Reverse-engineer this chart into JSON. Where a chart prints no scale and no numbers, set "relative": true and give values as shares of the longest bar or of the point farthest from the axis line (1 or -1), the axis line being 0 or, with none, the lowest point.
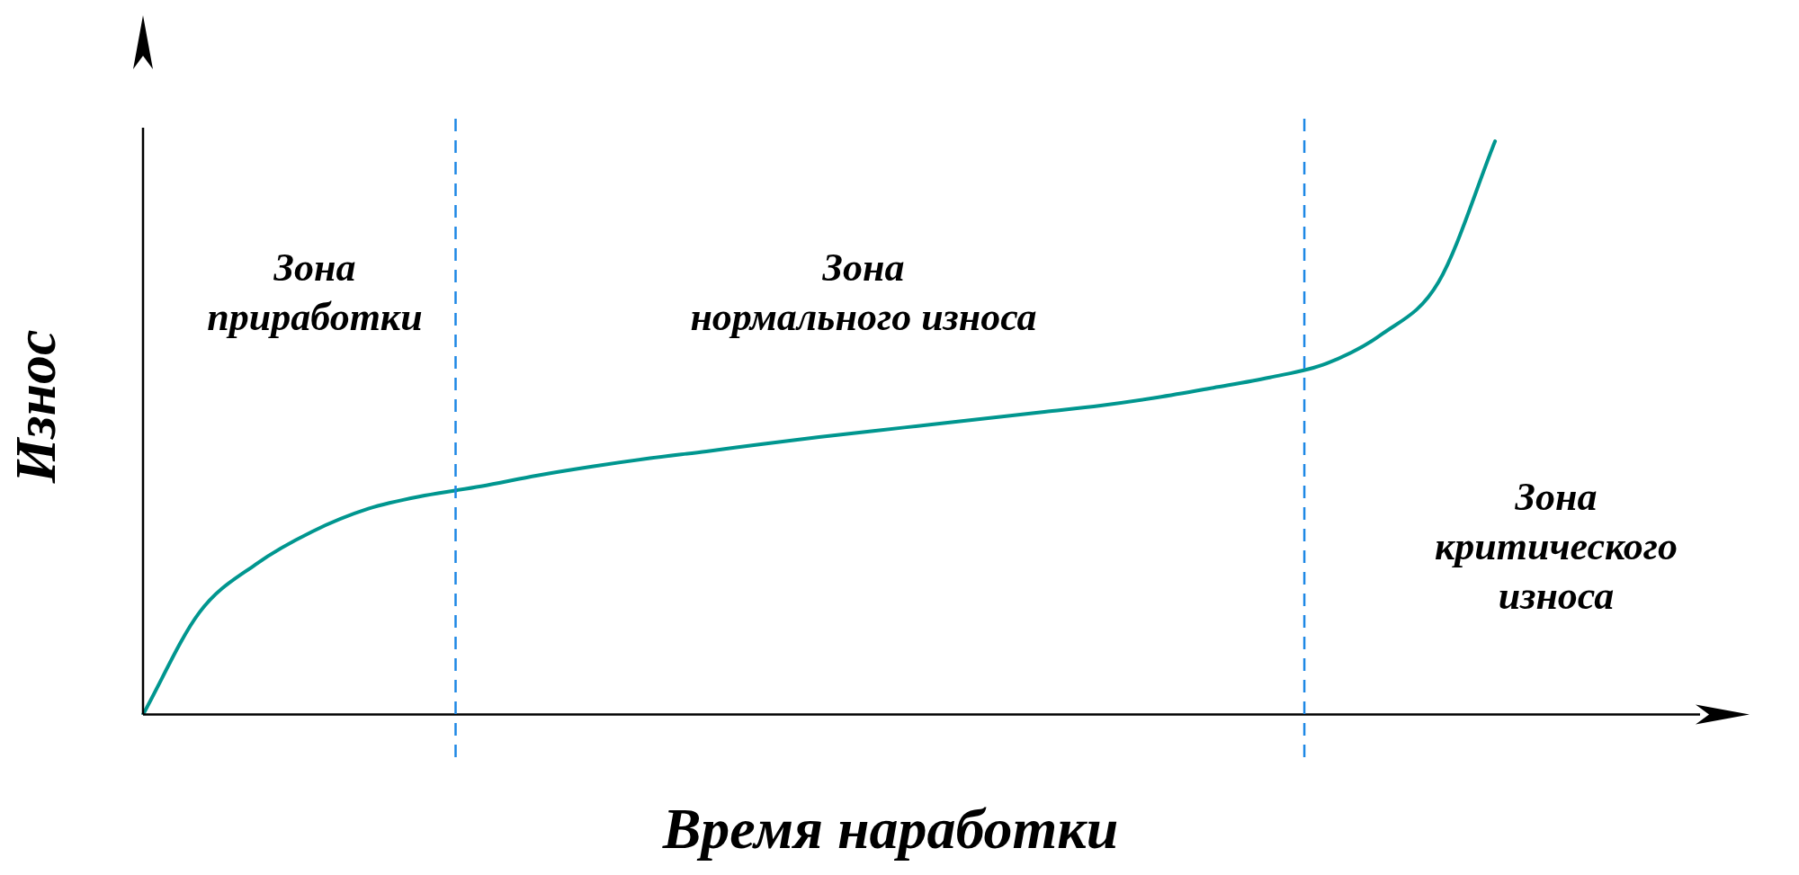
{
  "chart_data": {
    "type": "line",
    "relative": true,
    "xlabel": "Время наработки",
    "ylabel": "Износ",
    "categories": [
      null,
      null,
      null,
      null,
      null,
      null,
      null,
      null,
      null,
      null,
      null,
      null,
      null,
      null,
      null,
      null,
      null,
      null,
      null,
      null,
      null,
      null,
      null,
      null,
      null,
      null,
      null,
      null
    ],
    "series": [
      {
        "color": "#00968f",
        "values": [
          0,
          0.178,
          0.262,
          0.319,
          0.359,
          0.382,
          0.398,
          0.417,
          0.433,
          0.447,
          0.459,
          0.472,
          0.484,
          0.495,
          0.506,
          0.517,
          0.528,
          0.539,
          0.553,
          0.57,
          0.588,
          0.612,
          0.664,
          0.755,
          1,
          null,
          null,
          null
        ]
      }
    ],
    "annotations": [
      "Зона\nприработки",
      "Зона\nнормального износа",
      "Зона\nкритического\nизноса"
    ],
    "marker": "none",
    "line_style": "solid"
  }
}
